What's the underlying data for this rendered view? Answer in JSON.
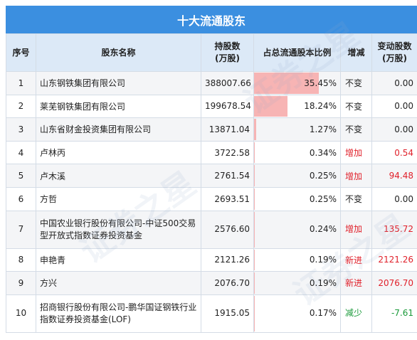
{
  "title": "十大流通股东",
  "headers": {
    "idx": "序号",
    "name": "股东名称",
    "shares_line1": "持股数",
    "shares_line2": "(万股)",
    "pct": "占总流通股本比例",
    "change": "增减",
    "delta_line1": "变动股数",
    "delta_line2": "(万股)"
  },
  "rows": [
    {
      "idx": "1",
      "name": "山东钢铁集团有限公司",
      "shares": "388007.66",
      "pct": "35.45%",
      "pct_value": 35.45,
      "change": "不变",
      "delta": "0.00",
      "tone": "neutral"
    },
    {
      "idx": "2",
      "name": "莱芜钢铁集团有限公司",
      "shares": "199678.54",
      "pct": "18.24%",
      "pct_value": 18.24,
      "change": "不变",
      "delta": "0.00",
      "tone": "neutral"
    },
    {
      "idx": "3",
      "name": "山东省财金投资集团有限公司",
      "shares": "13871.04",
      "pct": "1.27%",
      "pct_value": 1.27,
      "change": "不变",
      "delta": "0.00",
      "tone": "neutral"
    },
    {
      "idx": "4",
      "name": "卢林丙",
      "shares": "3722.58",
      "pct": "0.34%",
      "pct_value": 0.34,
      "change": "增加",
      "delta": "0.54",
      "tone": "up"
    },
    {
      "idx": "5",
      "name": "卢木溪",
      "shares": "2761.54",
      "pct": "0.25%",
      "pct_value": 0.25,
      "change": "增加",
      "delta": "94.48",
      "tone": "up"
    },
    {
      "idx": "6",
      "name": "方哲",
      "shares": "2693.51",
      "pct": "0.25%",
      "pct_value": 0.25,
      "change": "不变",
      "delta": "0.00",
      "tone": "neutral"
    },
    {
      "idx": "7",
      "name": "中国农业银行股份有限公司-中证500交易型开放式指数证券投资基金",
      "shares": "2576.60",
      "pct": "0.24%",
      "pct_value": 0.24,
      "change": "增加",
      "delta": "135.72",
      "tone": "up"
    },
    {
      "idx": "8",
      "name": "申艳青",
      "shares": "2121.26",
      "pct": "0.19%",
      "pct_value": 0.19,
      "change": "新进",
      "delta": "2121.26",
      "tone": "up"
    },
    {
      "idx": "9",
      "name": "方兴",
      "shares": "2076.70",
      "pct": "0.19%",
      "pct_value": 0.19,
      "change": "新进",
      "delta": "2076.70",
      "tone": "up"
    },
    {
      "idx": "10",
      "name": "招商银行股份有限公司-鹏华国证钢铁行业指数证券投资基金(LOF)",
      "shares": "1915.05",
      "pct": "0.17%",
      "pct_value": 0.17,
      "change": "减少",
      "delta": "-7.61",
      "tone": "down"
    }
  ],
  "colors": {
    "header_bar": "#3b8fe0",
    "header_row": "#dce9f7",
    "pct_bar": "#f7b4b4",
    "up": "#e0202a",
    "down": "#1a9a3a"
  },
  "watermark": "证券之星"
}
